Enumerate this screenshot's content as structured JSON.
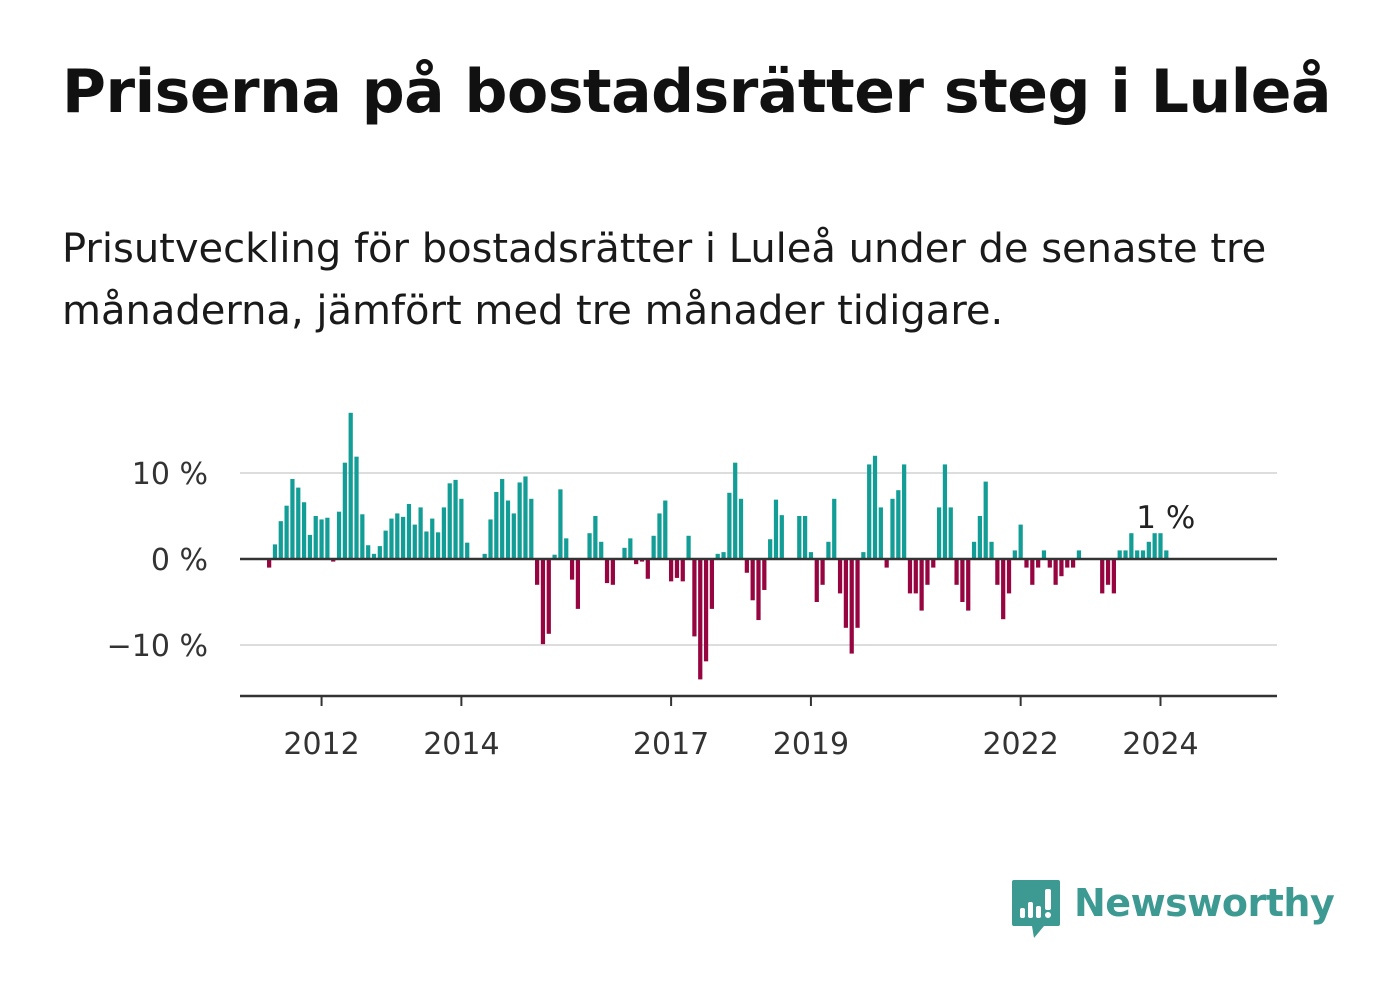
{
  "title": "Priserna på bostadsrätter steg i Luleå",
  "subtitle": "Prisutveckling för bostadsrätter i Luleå under de senaste tre månaderna, jämfört med tre månader tidigare.",
  "brand": {
    "name": "Newsworthy",
    "icon": "newsworthy-logo-icon",
    "color": "#3d9a92"
  },
  "colors": {
    "positive": "#129e96",
    "negative": "#96053f",
    "grid": "#dddddd",
    "axis": "#333333"
  },
  "chart_data": {
    "type": "bar",
    "series": [
      {
        "start": "2011-04",
        "frequency": "monthly",
        "values": [
          -1,
          1.7,
          4.4,
          6.2,
          9.3,
          8.3,
          6.6,
          2.8,
          5.0,
          4.6,
          4.8,
          -0.3,
          5.5,
          11.2,
          17.0,
          11.9,
          5.2,
          1.6,
          0.6,
          1.5,
          3.3,
          4.7,
          5.3,
          4.9,
          6.4,
          4.0,
          6.0,
          3.2,
          4.7,
          3.1,
          6.0,
          8.8,
          9.2,
          7.0,
          1.9,
          0,
          0,
          0.6,
          4.6,
          7.8,
          9.3,
          6.8,
          5.3,
          8.9,
          9.6,
          7.0,
          -3,
          -9.9,
          -8.7,
          0.5,
          8.1,
          2.4,
          -2.4,
          -5.8,
          0,
          3.0,
          5.0,
          2.0,
          -2.8,
          -3.0,
          0,
          1.3,
          2.4,
          -0.6,
          -0.3,
          -2.3,
          2.7,
          5.3,
          6.8,
          -2.6,
          -2.2,
          -2.6,
          2.7,
          -9.0,
          -14.0,
          -11.9,
          -5.8,
          0.6,
          0.8,
          7.7,
          11.2,
          7.0,
          -1.6,
          -4.8,
          -7.1,
          -3.6,
          2.3,
          6.9,
          5.1,
          0,
          0,
          5.0,
          5.0,
          0.8,
          -5.0,
          -3.0,
          2.0,
          7.0,
          -4.0,
          -8.0,
          -11.0,
          -8.0,
          0.8,
          11.0,
          12.0,
          6.0,
          -1.0,
          7.0,
          8.0,
          11.0,
          -4.0,
          -4.0,
          -6.0,
          -3.0,
          -1.0,
          6.0,
          11.0,
          6.0,
          -3.0,
          -5.0,
          -6.0,
          2.0,
          5.0,
          9.0,
          2.0,
          -3.0,
          -7.0,
          -4.0,
          1.0,
          4.0,
          -1.0,
          -3.0,
          -1.0,
          1.0,
          -1.0,
          -3.0,
          -2.0,
          -1.0,
          -1.0,
          1.0,
          0,
          0,
          0,
          -4.0,
          -3.0,
          -4.0,
          1.0,
          1.0,
          3.0,
          1.0,
          1.0,
          2.0,
          3.0,
          3.0,
          1.0
        ]
      }
    ],
    "yticks": [
      10,
      0,
      -10
    ],
    "ytick_labels": [
      "10 %",
      "0 %",
      "−10 %"
    ],
    "ylim": [
      -16,
      17.5
    ],
    "xticks": [
      "2012",
      "2014",
      "2017",
      "2019",
      "2022",
      "2024"
    ],
    "xlim": [
      "2010-11",
      "2025-09"
    ],
    "last_value_label": "1 %",
    "grid": true,
    "xlabel": "",
    "ylabel": ""
  }
}
